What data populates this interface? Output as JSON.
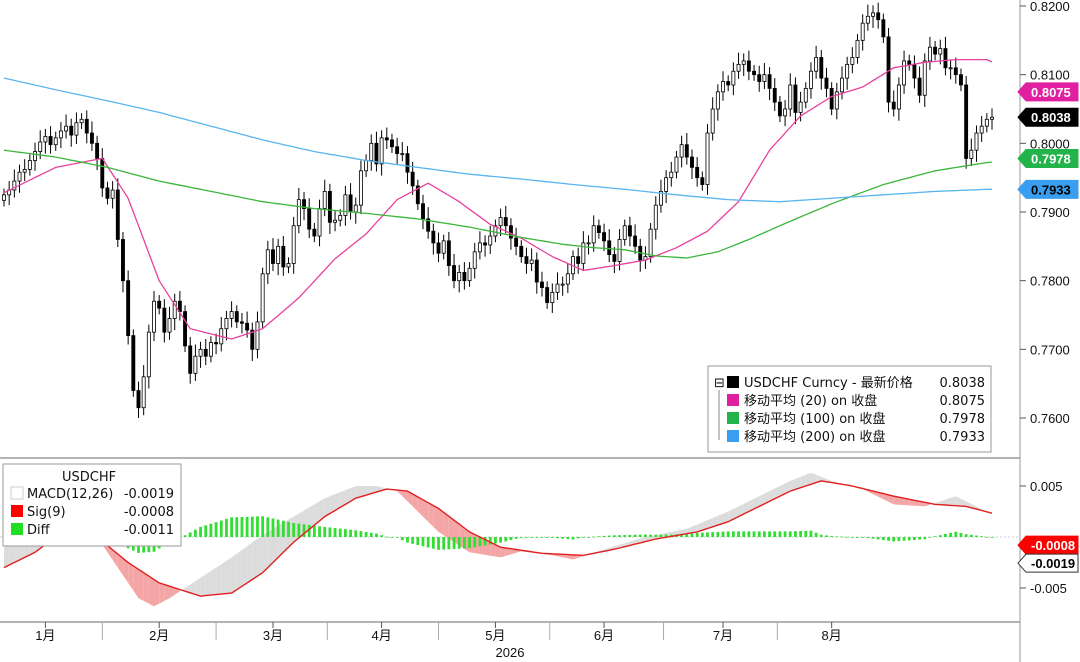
{
  "chart_data": [
    {
      "type": "candlestick",
      "panel": "price",
      "ylim": [
        0.754,
        0.821
      ],
      "yticks": [
        "0.8200",
        "0.8100",
        "0.8000",
        "0.7900",
        "0.7800",
        "0.7700",
        "0.7600"
      ],
      "grid": false,
      "legend_position": "bottom-right",
      "legend": [
        {
          "label": "USDCHF Curncy - 最新价格",
          "value": "0.8038",
          "color": "#000000"
        },
        {
          "label": "移动平均 (20)  on 收盘",
          "value": "0.8075",
          "color": "#e020a0"
        },
        {
          "label": "移动平均 (100)  on 收盘",
          "value": "0.7978",
          "color": "#22b34a"
        },
        {
          "label": "移动平均 (200)  on 收盘",
          "value": "0.7933",
          "color": "#3a9ef0"
        }
      ],
      "last_value_tags": [
        {
          "value": 0.8075,
          "text": "0.8075",
          "bg": "#e020a0",
          "fg": "#ffffff"
        },
        {
          "value": 0.8038,
          "text": "0.8038",
          "bg": "#000000",
          "fg": "#ffffff"
        },
        {
          "value": 0.7978,
          "text": "0.7978",
          "bg": "#22b34a",
          "fg": "#ffffff"
        },
        {
          "value": 0.7933,
          "text": "0.7933",
          "bg": "#3a9ef0",
          "fg": "#000000"
        }
      ],
      "series": [
        {
          "name": "USDCHF Curncy",
          "kind": "candles",
          "color": "#000000",
          "closes": [
            0.7925,
            0.7932,
            0.7945,
            0.7958,
            0.7962,
            0.7975,
            0.7988,
            0.8002,
            0.801,
            0.7998,
            0.8008,
            0.8018,
            0.8025,
            0.8012,
            0.803,
            0.8035,
            0.8015,
            0.8,
            0.7978,
            0.7935,
            0.792,
            0.7932,
            0.786,
            0.78,
            0.772,
            0.764,
            0.7615,
            0.766,
            0.7725,
            0.777,
            0.776,
            0.7725,
            0.7745,
            0.777,
            0.7755,
            0.7705,
            0.7665,
            0.769,
            0.77,
            0.769,
            0.771,
            0.7708,
            0.773,
            0.7745,
            0.7755,
            0.774,
            0.7738,
            0.7728,
            0.77,
            0.774,
            0.781,
            0.7845,
            0.7825,
            0.785,
            0.782,
            0.7825,
            0.788,
            0.7918,
            0.7905,
            0.7875,
            0.7865,
            0.7905,
            0.793,
            0.7885,
            0.7888,
            0.7895,
            0.7925,
            0.79,
            0.791,
            0.796,
            0.7975,
            0.8,
            0.797,
            0.8008,
            0.8005,
            0.7995,
            0.7985,
            0.7985,
            0.7958,
            0.7938,
            0.7912,
            0.789,
            0.7872,
            0.7855,
            0.784,
            0.7858,
            0.7822,
            0.78,
            0.7812,
            0.78,
            0.7818,
            0.7842,
            0.7855,
            0.7852,
            0.7865,
            0.788,
            0.7892,
            0.788,
            0.7862,
            0.785,
            0.7835,
            0.7825,
            0.783,
            0.7798,
            0.779,
            0.7768,
            0.7783,
            0.7795,
            0.7795,
            0.781,
            0.7835,
            0.7825,
            0.7855,
            0.7855,
            0.788,
            0.787,
            0.7858,
            0.7838,
            0.7828,
            0.786,
            0.788,
            0.7865,
            0.785,
            0.783,
            0.7835,
            0.7875,
            0.791,
            0.793,
            0.795,
            0.7958,
            0.798,
            0.7998,
            0.798,
            0.7965,
            0.795,
            0.794,
            0.8015,
            0.805,
            0.8075,
            0.809,
            0.8085,
            0.8105,
            0.8115,
            0.812,
            0.8105,
            0.81,
            0.809,
            0.81,
            0.808,
            0.806,
            0.804,
            0.805,
            0.8085,
            0.8045,
            0.806,
            0.808,
            0.8105,
            0.8125,
            0.8095,
            0.808,
            0.805,
            0.8075,
            0.8095,
            0.8115,
            0.8125,
            0.815,
            0.8175,
            0.8185,
            0.819,
            0.818,
            0.8155,
            0.806,
            0.805,
            0.8085,
            0.812,
            0.8115,
            0.8095,
            0.807,
            0.812,
            0.814,
            0.813,
            0.8138,
            0.811,
            0.811,
            0.81,
            0.8085,
            0.7978,
            0.799,
            0.8015,
            0.8025,
            0.8035,
            0.8038
          ]
        },
        {
          "name": "移动平均 (20)",
          "kind": "line",
          "color": "#e8409c",
          "knots": [
            [
              0,
              0.7928
            ],
            [
              10,
              0.7965
            ],
            [
              19,
              0.7978
            ],
            [
              24,
              0.792
            ],
            [
              30,
              0.78
            ],
            [
              36,
              0.773
            ],
            [
              44,
              0.7715
            ],
            [
              50,
              0.773
            ],
            [
              57,
              0.7775
            ],
            [
              64,
              0.7832
            ],
            [
              70,
              0.7868
            ],
            [
              76,
              0.7918
            ],
            [
              82,
              0.7942
            ],
            [
              88,
              0.7915
            ],
            [
              94,
              0.7882
            ],
            [
              100,
              0.7862
            ],
            [
              106,
              0.7835
            ],
            [
              112,
              0.7815
            ],
            [
              118,
              0.7822
            ],
            [
              124,
              0.783
            ],
            [
              130,
              0.7848
            ],
            [
              136,
              0.7872
            ],
            [
              142,
              0.7915
            ],
            [
              148,
              0.799
            ],
            [
              154,
              0.804
            ],
            [
              160,
              0.8068
            ],
            [
              166,
              0.8082
            ],
            [
              172,
              0.811
            ],
            [
              178,
              0.8118
            ],
            [
              184,
              0.8122
            ],
            [
              190,
              0.8122
            ],
            [
              195,
              0.8105
            ],
            [
              199,
              0.8075
            ]
          ]
        },
        {
          "name": "移动平均 (100)",
          "kind": "line",
          "color": "#3cb53c",
          "knots": [
            [
              0,
              0.799
            ],
            [
              10,
              0.798
            ],
            [
              20,
              0.7965
            ],
            [
              30,
              0.7945
            ],
            [
              40,
              0.793
            ],
            [
              50,
              0.7915
            ],
            [
              60,
              0.7905
            ],
            [
              70,
              0.7898
            ],
            [
              80,
              0.789
            ],
            [
              90,
              0.7878
            ],
            [
              100,
              0.7863
            ],
            [
              108,
              0.7853
            ],
            [
              114,
              0.7848
            ],
            [
              120,
              0.7845
            ],
            [
              126,
              0.7836
            ],
            [
              132,
              0.7833
            ],
            [
              138,
              0.7842
            ],
            [
              144,
              0.786
            ],
            [
              150,
              0.788
            ],
            [
              160,
              0.7912
            ],
            [
              170,
              0.794
            ],
            [
              180,
              0.796
            ],
            [
              190,
              0.7972
            ],
            [
              199,
              0.7978
            ]
          ]
        },
        {
          "name": "移动平均 (200)",
          "kind": "line",
          "color": "#5ab4f0",
          "knots": [
            [
              0,
              0.8095
            ],
            [
              10,
              0.8078
            ],
            [
              20,
              0.8062
            ],
            [
              30,
              0.8045
            ],
            [
              40,
              0.8025
            ],
            [
              50,
              0.8005
            ],
            [
              60,
              0.7988
            ],
            [
              70,
              0.7975
            ],
            [
              80,
              0.7965
            ],
            [
              90,
              0.7955
            ],
            [
              100,
              0.7948
            ],
            [
              110,
              0.794
            ],
            [
              120,
              0.7933
            ],
            [
              130,
              0.7925
            ],
            [
              140,
              0.7918
            ],
            [
              150,
              0.7915
            ],
            [
              160,
              0.792
            ],
            [
              170,
              0.7925
            ],
            [
              180,
              0.793
            ],
            [
              190,
              0.7933
            ],
            [
              199,
              0.7933
            ]
          ]
        }
      ]
    },
    {
      "type": "macd",
      "panel": "indicator",
      "ylim": [
        -0.0082,
        0.0072
      ],
      "yticks": [
        "0.005",
        "-0.005"
      ],
      "grid": false,
      "legend_position": "top-left",
      "title": "USDCHF",
      "legend": [
        {
          "label": "MACD(12,26)",
          "value": "-0.0019",
          "color": "#ffffff"
        },
        {
          "label": "Sig(9)",
          "value": "-0.0008",
          "color": "#ff0000"
        },
        {
          "label": "Diff",
          "value": "-0.0011",
          "color": "#22dd22"
        }
      ],
      "last_value_tags": [
        {
          "value": -0.0008,
          "text": "-0.0008",
          "bg": "#ff0000",
          "fg": "#ffffff"
        },
        {
          "value": -0.0019,
          "text": "-0.0019",
          "bg": "#ffffff",
          "fg": "#000000"
        }
      ],
      "series": [
        {
          "name": "MACD(12,26)",
          "kind": "line",
          "color": "#d0d0d0",
          "knots": [
            [
              0,
              -0.001
            ],
            [
              6,
              0.0002
            ],
            [
              12,
              0.0012
            ],
            [
              18,
              0.0
            ],
            [
              22,
              -0.003
            ],
            [
              26,
              -0.006
            ],
            [
              29,
              -0.0068
            ],
            [
              32,
              -0.006
            ],
            [
              38,
              -0.004
            ],
            [
              44,
              -0.002
            ],
            [
              50,
              0.0002
            ],
            [
              56,
              0.002
            ],
            [
              62,
              0.0038
            ],
            [
              68,
              0.005
            ],
            [
              72,
              0.005
            ],
            [
              76,
              0.0045
            ],
            [
              80,
              0.0025
            ],
            [
              84,
              0.0005
            ],
            [
              90,
              -0.0015
            ],
            [
              96,
              -0.002
            ],
            [
              100,
              -0.0014
            ],
            [
              106,
              -0.0018
            ],
            [
              110,
              -0.0022
            ],
            [
              116,
              -0.0012
            ],
            [
              124,
              0.0
            ],
            [
              132,
              0.0008
            ],
            [
              140,
              0.0025
            ],
            [
              146,
              0.004
            ],
            [
              152,
              0.0055
            ],
            [
              156,
              0.0063
            ],
            [
              160,
              0.0055
            ],
            [
              166,
              0.0047
            ],
            [
              172,
              0.0032
            ],
            [
              178,
              0.003
            ],
            [
              184,
              0.004
            ],
            [
              190,
              0.0025
            ],
            [
              194,
              0.0015
            ],
            [
              197,
              -0.0005
            ],
            [
              199,
              -0.0019
            ]
          ]
        },
        {
          "name": "Sig(9)",
          "kind": "line",
          "color": "#e02020",
          "knots": [
            [
              0,
              -0.003
            ],
            [
              6,
              -0.0015
            ],
            [
              12,
              0.0008
            ],
            [
              18,
              0.0
            ],
            [
              24,
              -0.0025
            ],
            [
              30,
              -0.0045
            ],
            [
              38,
              -0.0058
            ],
            [
              44,
              -0.0055
            ],
            [
              50,
              -0.0035
            ],
            [
              56,
              -0.0005
            ],
            [
              62,
              0.002
            ],
            [
              68,
              0.0038
            ],
            [
              74,
              0.0047
            ],
            [
              78,
              0.0045
            ],
            [
              84,
              0.0028
            ],
            [
              90,
              0.0005
            ],
            [
              96,
              -0.001
            ],
            [
              104,
              -0.0016
            ],
            [
              112,
              -0.0018
            ],
            [
              118,
              -0.0012
            ],
            [
              126,
              -0.0002
            ],
            [
              134,
              0.0005
            ],
            [
              140,
              0.0015
            ],
            [
              146,
              0.003
            ],
            [
              152,
              0.0045
            ],
            [
              158,
              0.0055
            ],
            [
              164,
              0.005
            ],
            [
              172,
              0.004
            ],
            [
              180,
              0.0032
            ],
            [
              186,
              0.003
            ],
            [
              192,
              0.0022
            ],
            [
              196,
              0.0015
            ],
            [
              199,
              -0.0008
            ]
          ]
        }
      ],
      "histogram": {
        "name": "Diff",
        "color": "#22dd22",
        "last": -0.0011
      }
    }
  ],
  "x_axis": {
    "labels": [
      "1月",
      "2月",
      "3月",
      "4月",
      "5月",
      "6月",
      "7月",
      "8月"
    ],
    "positions": [
      8,
      30,
      52,
      73,
      95,
      116,
      139,
      160
    ],
    "year": "2026"
  }
}
